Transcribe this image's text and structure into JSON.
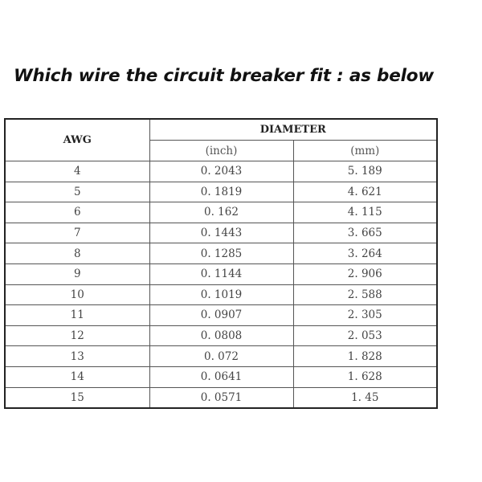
{
  "title": "Which wire the circuit breaker fit : as below",
  "table": {
    "headers": {
      "awg": "AWG",
      "diameter": "DIAMETER",
      "inch": "(inch)",
      "mm": "(mm)"
    },
    "rows": [
      {
        "awg": "4",
        "inch": "0. 2043",
        "mm": "5. 189"
      },
      {
        "awg": "5",
        "inch": "0. 1819",
        "mm": "4. 621"
      },
      {
        "awg": "6",
        "inch": "0. 162",
        "mm": "4. 115"
      },
      {
        "awg": "7",
        "inch": "0. 1443",
        "mm": "3. 665"
      },
      {
        "awg": "8",
        "inch": "0. 1285",
        "mm": "3. 264"
      },
      {
        "awg": "9",
        "inch": "0. 1144",
        "mm": "2. 906"
      },
      {
        "awg": "10",
        "inch": "0. 1019",
        "mm": "2. 588"
      },
      {
        "awg": "11",
        "inch": "0. 0907",
        "mm": "2. 305"
      },
      {
        "awg": "12",
        "inch": "0. 0808",
        "mm": "2. 053"
      },
      {
        "awg": "13",
        "inch": "0. 072",
        "mm": "1. 828"
      },
      {
        "awg": "14",
        "inch": "0. 0641",
        "mm": "1. 628"
      },
      {
        "awg": "15",
        "inch": "0. 0571",
        "mm": "1. 45"
      }
    ]
  }
}
